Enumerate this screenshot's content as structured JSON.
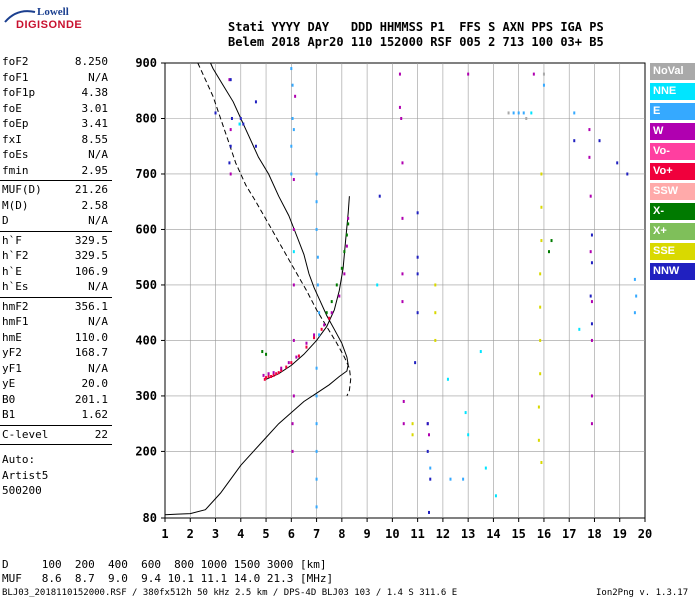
{
  "logo": {
    "line1": "Lowell",
    "line2": "DIGISONDE"
  },
  "header": {
    "line1": "Stati YYYY DAY   DDD HHMMSS P1  FFS S AXN PPS IGA PS",
    "line2": "Belem 2018 Apr20 110 152000 RSF 005 2 713 100 03+ B5"
  },
  "params": {
    "group1": [
      {
        "k": "foF2",
        "v": "8.250"
      },
      {
        "k": "foF1",
        "v": "N/A"
      },
      {
        "k": "foF1p",
        "v": "4.38"
      },
      {
        "k": "foE",
        "v": "3.01"
      },
      {
        "k": "foEp",
        "v": "3.41"
      },
      {
        "k": "fxI",
        "v": "8.55"
      },
      {
        "k": "foEs",
        "v": "N/A"
      },
      {
        "k": "fmin",
        "v": "2.95"
      }
    ],
    "group2": [
      {
        "k": "MUF(D)",
        "v": "21.26"
      },
      {
        "k": "M(D)",
        "v": "2.58"
      },
      {
        "k": "D",
        "v": "N/A"
      }
    ],
    "group3": [
      {
        "k": "h`F",
        "v": "329.5"
      },
      {
        "k": "h`F2",
        "v": "329.5"
      },
      {
        "k": "h`E",
        "v": "106.9"
      },
      {
        "k": "h`Es",
        "v": "N/A"
      }
    ],
    "group4": [
      {
        "k": "hmF2",
        "v": "356.1"
      },
      {
        "k": "hmF1",
        "v": "N/A"
      },
      {
        "k": "hmE",
        "v": "110.0"
      },
      {
        "k": "yF2",
        "v": "168.7"
      },
      {
        "k": "yF1",
        "v": "N/A"
      },
      {
        "k": "yE",
        "v": "20.0"
      },
      {
        "k": "B0",
        "v": "201.1"
      },
      {
        "k": "B1",
        "v": "1.62"
      }
    ],
    "group5": [
      {
        "k": "C-level",
        "v": "22"
      }
    ]
  },
  "auto": {
    "line1": "Auto:",
    "line2": "Artist5",
    "line3": "500200"
  },
  "footer": {
    "d_row": "D     100  200  400  600  800 1000 1500 3000 [km]",
    "muf_row": "MUF   8.6  8.7  9.0  9.4 10.1 11.1 14.0 21.3 [MHz]",
    "credit_left": "BLJ03_2018110152000.RSF / 380fx512h 50 kHz 2.5 km / DPS-4D BLJ03 103 / 1.4 S 311.6 E",
    "credit_right": "Ion2Png v. 1.3.17"
  },
  "legend": [
    {
      "label": "NoVal",
      "color": "#a9a9a9"
    },
    {
      "label": "NNE",
      "color": "#00e5ff"
    },
    {
      "label": "E",
      "color": "#35a9ff"
    },
    {
      "label": "W",
      "color": "#b000b0"
    },
    {
      "label": "Vo-",
      "color": "#ff3fa0"
    },
    {
      "label": "Vo+",
      "color": "#f0003c"
    },
    {
      "label": "SSW",
      "color": "#ffaaaa"
    },
    {
      "label": "X-",
      "color": "#007a00"
    },
    {
      "label": "X+",
      "color": "#7fbf5a"
    },
    {
      "label": "SSE",
      "color": "#d9d900"
    },
    {
      "label": "NNW",
      "color": "#2020c0"
    }
  ],
  "chart_data": {
    "type": "scatter",
    "title": "",
    "xlabel": "",
    "ylabel": "",
    "xlim": [
      1,
      20
    ],
    "ylim": [
      80,
      900
    ],
    "xticks": [
      1,
      2,
      3,
      4,
      5,
      6,
      7,
      8,
      9,
      10,
      11,
      12,
      13,
      14,
      15,
      16,
      17,
      18,
      19,
      20
    ],
    "yticks": [
      80,
      200,
      300,
      400,
      500,
      600,
      700,
      800,
      900
    ],
    "grid": true,
    "legend_position": "right",
    "series": [
      {
        "name": "Vo+",
        "color": "#f0003c",
        "points": [
          [
            4.95,
            330
          ],
          [
            5.0,
            333
          ],
          [
            5.1,
            335
          ],
          [
            5.2,
            335
          ],
          [
            5.3,
            337
          ],
          [
            5.4,
            340
          ],
          [
            5.5,
            342
          ],
          [
            5.6,
            346
          ],
          [
            5.8,
            352
          ],
          [
            6.0,
            360
          ],
          [
            6.3,
            372
          ],
          [
            6.6,
            388
          ],
          [
            6.9,
            405
          ],
          [
            7.2,
            420
          ],
          [
            7.5,
            440
          ]
        ]
      },
      {
        "name": "W",
        "color": "#b000b0",
        "points": [
          [
            4.9,
            337
          ],
          [
            5.1,
            340
          ],
          [
            5.3,
            342
          ],
          [
            5.6,
            350
          ],
          [
            5.9,
            360
          ],
          [
            6.2,
            370
          ],
          [
            6.6,
            395
          ],
          [
            6.9,
            410
          ],
          [
            7.3,
            428
          ],
          [
            7.6,
            450
          ],
          [
            7.9,
            480
          ],
          [
            8.1,
            520
          ],
          [
            8.2,
            570
          ],
          [
            8.25,
            620
          ],
          [
            3.55,
            870
          ],
          [
            3.6,
            780
          ],
          [
            3.6,
            700
          ],
          [
            10.3,
            880
          ],
          [
            10.3,
            820
          ],
          [
            10.35,
            800
          ],
          [
            10.4,
            720
          ],
          [
            10.4,
            620
          ],
          [
            10.4,
            520
          ],
          [
            10.4,
            470
          ],
          [
            10.45,
            290
          ],
          [
            10.45,
            250
          ],
          [
            11.4,
            250
          ],
          [
            11.45,
            230
          ],
          [
            13.0,
            880
          ],
          [
            15.6,
            880
          ],
          [
            17.8,
            780
          ],
          [
            17.8,
            730
          ],
          [
            17.85,
            660
          ],
          [
            17.85,
            560
          ],
          [
            17.9,
            470
          ],
          [
            17.9,
            400
          ],
          [
            17.9,
            300
          ],
          [
            17.9,
            250
          ],
          [
            6.15,
            840
          ],
          [
            6.1,
            690
          ],
          [
            6.1,
            600
          ],
          [
            6.1,
            500
          ],
          [
            6.1,
            400
          ],
          [
            6.1,
            300
          ],
          [
            6.05,
            250
          ],
          [
            6.05,
            200
          ]
        ]
      },
      {
        "name": "X-",
        "color": "#007a00",
        "points": [
          [
            4.85,
            380
          ],
          [
            5.0,
            375
          ],
          [
            7.4,
            450
          ],
          [
            7.6,
            470
          ],
          [
            7.8,
            500
          ],
          [
            8.0,
            530
          ],
          [
            8.1,
            560
          ],
          [
            8.2,
            590
          ],
          [
            8.25,
            610
          ],
          [
            16.2,
            560
          ],
          [
            16.3,
            580
          ]
        ]
      },
      {
        "name": "E",
        "color": "#35a9ff",
        "points": [
          [
            6.0,
            890
          ],
          [
            6.05,
            860
          ],
          [
            6.05,
            800
          ],
          [
            6.1,
            780
          ],
          [
            6.0,
            750
          ],
          [
            6.0,
            700
          ],
          [
            7.0,
            700
          ],
          [
            7.0,
            650
          ],
          [
            7.0,
            600
          ],
          [
            7.05,
            550
          ],
          [
            7.05,
            500
          ],
          [
            7.1,
            450
          ],
          [
            7.1,
            410
          ],
          [
            7.0,
            350
          ],
          [
            7.0,
            300
          ],
          [
            7.0,
            250
          ],
          [
            7.0,
            200
          ],
          [
            7.0,
            150
          ],
          [
            7.0,
            100
          ],
          [
            14.8,
            810
          ],
          [
            15.0,
            810
          ],
          [
            15.2,
            810
          ],
          [
            16.0,
            860
          ],
          [
            17.2,
            810
          ],
          [
            19.6,
            510
          ],
          [
            19.65,
            480
          ],
          [
            19.6,
            450
          ],
          [
            11.5,
            170
          ],
          [
            12.3,
            150
          ],
          [
            12.8,
            150
          ]
        ]
      },
      {
        "name": "NNW",
        "color": "#2020c0",
        "points": [
          [
            3.6,
            870
          ],
          [
            3.65,
            800
          ],
          [
            3.6,
            750
          ],
          [
            3.55,
            720
          ],
          [
            4.0,
            800
          ],
          [
            4.1,
            790
          ],
          [
            4.6,
            830
          ],
          [
            4.6,
            750
          ],
          [
            18.9,
            720
          ],
          [
            18.2,
            760
          ],
          [
            19.3,
            700
          ],
          [
            17.2,
            760
          ],
          [
            11.0,
            630
          ],
          [
            11.0,
            550
          ],
          [
            11.0,
            520
          ],
          [
            11.0,
            450
          ],
          [
            10.9,
            360
          ],
          [
            11.4,
            250
          ],
          [
            11.4,
            200
          ],
          [
            11.5,
            150
          ],
          [
            11.45,
            90
          ],
          [
            17.9,
            590
          ],
          [
            17.9,
            540
          ],
          [
            17.85,
            480
          ],
          [
            17.9,
            430
          ],
          [
            3.0,
            810
          ],
          [
            9.5,
            660
          ]
        ]
      },
      {
        "name": "SSE",
        "color": "#d9d900",
        "points": [
          [
            15.9,
            700
          ],
          [
            15.9,
            640
          ],
          [
            15.9,
            580
          ],
          [
            15.85,
            520
          ],
          [
            15.85,
            460
          ],
          [
            15.85,
            400
          ],
          [
            15.85,
            340
          ],
          [
            15.8,
            280
          ],
          [
            15.8,
            220
          ],
          [
            15.9,
            180
          ],
          [
            11.7,
            500
          ],
          [
            11.7,
            450
          ],
          [
            11.7,
            400
          ],
          [
            10.8,
            250
          ],
          [
            10.8,
            230
          ]
        ]
      },
      {
        "name": "NNE",
        "color": "#00e5ff",
        "points": [
          [
            3.95,
            790
          ],
          [
            6.1,
            560
          ],
          [
            9.4,
            500
          ],
          [
            15.5,
            810
          ],
          [
            13.5,
            380
          ],
          [
            12.2,
            330
          ],
          [
            17.4,
            420
          ],
          [
            12.9,
            270
          ],
          [
            13.0,
            230
          ],
          [
            13.7,
            170
          ],
          [
            14.1,
            120
          ]
        ]
      },
      {
        "name": "NoVal",
        "color": "#a9a9a9",
        "points": [
          [
            14.6,
            810
          ],
          [
            15.3,
            800
          ],
          [
            16.0,
            880
          ]
        ]
      }
    ],
    "curves": [
      {
        "name": "profile-solid",
        "style": "solid",
        "points": [
          [
            1.0,
            86
          ],
          [
            1.5,
            87
          ],
          [
            2.0,
            88
          ],
          [
            2.6,
            95
          ],
          [
            2.9,
            110
          ],
          [
            3.2,
            125
          ],
          [
            3.6,
            150
          ],
          [
            4.0,
            175
          ],
          [
            4.5,
            200
          ],
          [
            5.0,
            225
          ],
          [
            5.5,
            250
          ],
          [
            6.0,
            270
          ],
          [
            6.5,
            290
          ],
          [
            7.0,
            305
          ],
          [
            7.5,
            320
          ],
          [
            7.9,
            335
          ],
          [
            8.2,
            345
          ],
          [
            8.25,
            356
          ],
          [
            8.2,
            370
          ],
          [
            8.0,
            395
          ],
          [
            7.7,
            420
          ],
          [
            7.4,
            445
          ],
          [
            7.15,
            470
          ],
          [
            6.9,
            495
          ],
          [
            6.7,
            520
          ],
          [
            6.5,
            555
          ],
          [
            6.2,
            590
          ],
          [
            5.9,
            625
          ],
          [
            5.5,
            660
          ],
          [
            5.1,
            700
          ],
          [
            4.7,
            730
          ],
          [
            4.3,
            770
          ],
          [
            4.0,
            800
          ],
          [
            3.7,
            830
          ],
          [
            3.3,
            860
          ],
          [
            2.9,
            890
          ],
          [
            2.8,
            900
          ]
        ]
      },
      {
        "name": "trace-solid",
        "style": "solid",
        "points": [
          [
            5.0,
            330
          ],
          [
            5.5,
            340
          ],
          [
            6.0,
            355
          ],
          [
            6.5,
            375
          ],
          [
            7.0,
            400
          ],
          [
            7.4,
            425
          ],
          [
            7.7,
            455
          ],
          [
            7.9,
            490
          ],
          [
            8.05,
            530
          ],
          [
            8.15,
            580
          ],
          [
            8.25,
            630
          ],
          [
            8.3,
            660
          ]
        ]
      },
      {
        "name": "trace-dashed",
        "style": "dashed",
        "points": [
          [
            2.3,
            900
          ],
          [
            2.5,
            880
          ],
          [
            2.9,
            840
          ],
          [
            3.2,
            800
          ],
          [
            3.5,
            760
          ],
          [
            3.8,
            720
          ],
          [
            4.2,
            680
          ],
          [
            4.6,
            650
          ],
          [
            5.1,
            610
          ],
          [
            5.6,
            570
          ],
          [
            6.1,
            530
          ],
          [
            6.6,
            490
          ],
          [
            7.0,
            455
          ],
          [
            7.4,
            425
          ],
          [
            7.8,
            395
          ],
          [
            8.1,
            370
          ],
          [
            8.3,
            350
          ],
          [
            8.35,
            330
          ],
          [
            8.3,
            310
          ],
          [
            8.2,
            300
          ]
        ]
      }
    ]
  }
}
